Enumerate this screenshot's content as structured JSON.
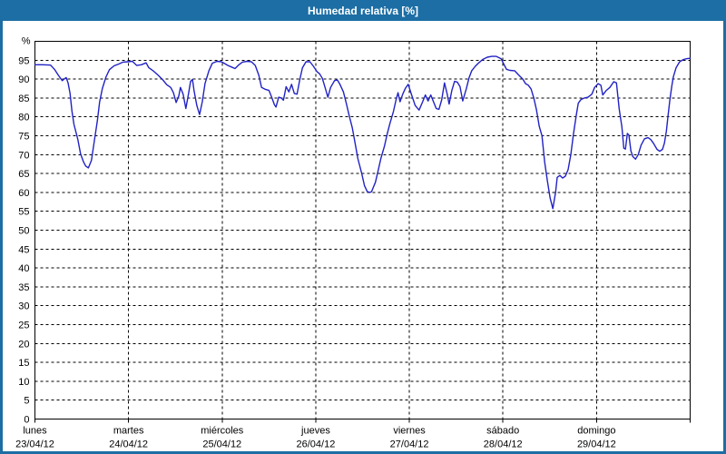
{
  "window": {
    "title": "Humedad relativa [%]"
  },
  "colors": {
    "titlebar": "#1c6ea4",
    "frame_border": "#1c6ea4",
    "line": "#2222c4",
    "grid": "#000000",
    "background": "#ffffff",
    "plot_background": "#ffffff",
    "title_text": "#ffffff",
    "axis_text": "#000000"
  },
  "chart_data": {
    "type": "line",
    "title": "Humedad relativa [%]",
    "ylabel": "%",
    "grid": "dashed",
    "legend_position": "none",
    "y_axis": {
      "min": 0,
      "max": 100,
      "tick_step": 5,
      "top_label": "%",
      "tick_labels": [
        "0",
        "5",
        "10",
        "15",
        "20",
        "25",
        "30",
        "35",
        "40",
        "45",
        "50",
        "55",
        "60",
        "65",
        "70",
        "75",
        "80",
        "85",
        "90",
        "95"
      ]
    },
    "x_axis": {
      "total_hours": 168,
      "days": [
        {
          "name": "lunes",
          "date": "23/04/12"
        },
        {
          "name": "martes",
          "date": "24/04/12"
        },
        {
          "name": "miércoles",
          "date": "25/04/12"
        },
        {
          "name": "jueves",
          "date": "26/04/12"
        },
        {
          "name": "viernes",
          "date": "27/04/12"
        },
        {
          "name": "sábado",
          "date": "28/04/12"
        },
        {
          "name": "domingo",
          "date": "29/04/12"
        }
      ]
    },
    "series": [
      {
        "name": "Humedad relativa",
        "unit": "%",
        "points": [
          [
            0,
            93.8
          ],
          [
            2,
            93.8
          ],
          [
            4,
            93.7
          ],
          [
            5,
            92.6
          ],
          [
            6,
            91.0
          ],
          [
            7,
            89.6
          ],
          [
            7.5,
            90.0
          ],
          [
            8,
            90.4
          ],
          [
            8.5,
            89.0
          ],
          [
            9,
            86.2
          ],
          [
            9.5,
            81.5
          ],
          [
            10,
            78.0
          ],
          [
            11,
            74.0
          ],
          [
            11.7,
            70.2
          ],
          [
            12.4,
            68.2
          ],
          [
            13,
            67.0
          ],
          [
            13.7,
            66.5
          ],
          [
            14.5,
            68.5
          ],
          [
            15.2,
            73.4
          ],
          [
            16,
            79.0
          ],
          [
            16.6,
            84.0
          ],
          [
            17.3,
            87.5
          ],
          [
            18.2,
            90.5
          ],
          [
            19.1,
            92.5
          ],
          [
            20.3,
            93.5
          ],
          [
            21.5,
            94.0
          ],
          [
            22.6,
            94.5
          ],
          [
            23.8,
            94.6
          ],
          [
            25,
            94.7
          ],
          [
            26.1,
            93.6
          ],
          [
            27.3,
            93.8
          ],
          [
            28.5,
            94.3
          ],
          [
            29.2,
            93.0
          ],
          [
            30.3,
            92.2
          ],
          [
            31.5,
            91.1
          ],
          [
            32.7,
            89.9
          ],
          [
            33.8,
            88.5
          ],
          [
            34.8,
            87.8
          ],
          [
            35.5,
            86.4
          ],
          [
            36.2,
            83.8
          ],
          [
            36.9,
            85.6
          ],
          [
            37.3,
            87.8
          ],
          [
            38,
            86.0
          ],
          [
            38.7,
            82.2
          ],
          [
            39.4,
            86.2
          ],
          [
            39.9,
            89.4
          ],
          [
            40.4,
            89.9
          ],
          [
            40.8,
            87.0
          ],
          [
            41.5,
            83.0
          ],
          [
            42.2,
            80.6
          ],
          [
            42.9,
            84.0
          ],
          [
            43.6,
            88.8
          ],
          [
            44.6,
            92.2
          ],
          [
            45.5,
            94.2
          ],
          [
            46.7,
            94.7
          ],
          [
            47.8,
            94.6
          ],
          [
            48.5,
            94.2
          ],
          [
            49.5,
            93.6
          ],
          [
            50.4,
            93.2
          ],
          [
            51.3,
            92.8
          ],
          [
            52.3,
            93.8
          ],
          [
            53.2,
            94.5
          ],
          [
            54.4,
            94.7
          ],
          [
            55.5,
            94.6
          ],
          [
            56.5,
            93.6
          ],
          [
            57.4,
            91.0
          ],
          [
            58.1,
            87.8
          ],
          [
            59,
            87.3
          ],
          [
            60,
            87.0
          ],
          [
            60.7,
            85.2
          ],
          [
            61.4,
            83.2
          ],
          [
            61.8,
            82.6
          ],
          [
            62.5,
            85.2
          ],
          [
            63.2,
            85.0
          ],
          [
            63.7,
            84.4
          ],
          [
            64.4,
            88.0
          ],
          [
            65.1,
            86.6
          ],
          [
            65.8,
            88.6
          ],
          [
            66.5,
            86.2
          ],
          [
            67.2,
            86.0
          ],
          [
            67.9,
            89.8
          ],
          [
            68.6,
            93.0
          ],
          [
            69.5,
            94.6
          ],
          [
            70.5,
            94.6
          ],
          [
            71.4,
            93.4
          ],
          [
            72.3,
            92.0
          ],
          [
            73,
            91.4
          ],
          [
            73.7,
            90.2
          ],
          [
            74.4,
            87.8
          ],
          [
            75.1,
            85.2
          ],
          [
            75.8,
            87.8
          ],
          [
            76.8,
            89.6
          ],
          [
            77.5,
            89.8
          ],
          [
            78.2,
            88.6
          ],
          [
            79.1,
            86.6
          ],
          [
            79.8,
            83.8
          ],
          [
            80.5,
            80.6
          ],
          [
            81.4,
            77.0
          ],
          [
            82.1,
            73.0
          ],
          [
            82.8,
            69.0
          ],
          [
            83.8,
            65.0
          ],
          [
            84.5,
            61.8
          ],
          [
            85.2,
            60.2
          ],
          [
            85.9,
            60.0
          ],
          [
            86.3,
            60.2
          ],
          [
            87.3,
            62.7
          ],
          [
            88,
            65.8
          ],
          [
            88.7,
            69.0
          ],
          [
            89.6,
            72.2
          ],
          [
            90.3,
            75.4
          ],
          [
            91,
            78.2
          ],
          [
            91.9,
            81.4
          ],
          [
            92.6,
            84.6
          ],
          [
            93.1,
            86.4
          ],
          [
            93.6,
            84.0
          ],
          [
            94.3,
            86.0
          ],
          [
            95,
            87.6
          ],
          [
            95.7,
            88.6
          ],
          [
            96.6,
            85.8
          ],
          [
            97.5,
            83.0
          ],
          [
            98.5,
            81.8
          ],
          [
            99.4,
            84.0
          ],
          [
            100.1,
            85.8
          ],
          [
            100.8,
            84.2
          ],
          [
            101.5,
            85.8
          ],
          [
            102.2,
            84.0
          ],
          [
            102.9,
            82.2
          ],
          [
            103.6,
            82.0
          ],
          [
            104.3,
            84.5
          ],
          [
            105,
            89.0
          ],
          [
            105.7,
            86.0
          ],
          [
            106.2,
            83.4
          ],
          [
            106.9,
            87.0
          ],
          [
            107.6,
            89.4
          ],
          [
            108.3,
            89.2
          ],
          [
            109,
            88.0
          ],
          [
            109.7,
            84.2
          ],
          [
            110.6,
            87.4
          ],
          [
            111.3,
            90.3
          ],
          [
            112,
            92.2
          ],
          [
            112.9,
            93.4
          ],
          [
            113.9,
            94.4
          ],
          [
            114.8,
            95.2
          ],
          [
            116,
            95.8
          ],
          [
            117.1,
            96.0
          ],
          [
            118.3,
            96.0
          ],
          [
            119.5,
            95.4
          ],
          [
            120.2,
            94.0
          ],
          [
            120.9,
            92.6
          ],
          [
            121.8,
            92.3
          ],
          [
            123,
            92.2
          ],
          [
            124.1,
            91.0
          ],
          [
            125.1,
            90.0
          ],
          [
            125.8,
            88.8
          ],
          [
            126.5,
            88.4
          ],
          [
            127.2,
            87.4
          ],
          [
            127.9,
            85.0
          ],
          [
            128.6,
            81.8
          ],
          [
            129.3,
            77.5
          ],
          [
            130,
            75.0
          ],
          [
            130.7,
            68.0
          ],
          [
            131.4,
            63.0
          ],
          [
            132.1,
            58.5
          ],
          [
            132.8,
            55.7
          ],
          [
            133.5,
            60.0
          ],
          [
            133.9,
            64.0
          ],
          [
            134.6,
            64.5
          ],
          [
            135.3,
            63.8
          ],
          [
            136,
            64.3
          ],
          [
            136.7,
            66.0
          ],
          [
            137.4,
            70.0
          ],
          [
            138.1,
            75.6
          ],
          [
            138.8,
            80.4
          ],
          [
            139.3,
            83.6
          ],
          [
            140,
            84.6
          ],
          [
            140.9,
            85.0
          ],
          [
            141.8,
            85.2
          ],
          [
            142.8,
            86.0
          ],
          [
            143.5,
            87.8
          ],
          [
            144.4,
            88.8
          ],
          [
            145.1,
            88.4
          ],
          [
            145.6,
            85.8
          ],
          [
            146.5,
            87.0
          ],
          [
            147.4,
            87.8
          ],
          [
            148.4,
            89.3
          ],
          [
            149.1,
            89.0
          ],
          [
            149.8,
            82.1
          ],
          [
            150.5,
            77.3
          ],
          [
            151,
            71.7
          ],
          [
            151.4,
            71.5
          ],
          [
            151.9,
            75.6
          ],
          [
            152.3,
            75.2
          ],
          [
            152.8,
            71.0
          ],
          [
            153.3,
            69.5
          ],
          [
            154,
            68.8
          ],
          [
            154.7,
            70.0
          ],
          [
            155.4,
            72.5
          ],
          [
            156.3,
            74.2
          ],
          [
            157.2,
            74.5
          ],
          [
            157.9,
            74.0
          ],
          [
            158.6,
            73.0
          ],
          [
            159.5,
            71.4
          ],
          [
            160.2,
            70.9
          ],
          [
            160.9,
            71.4
          ],
          [
            161.4,
            73.0
          ],
          [
            161.9,
            76.2
          ],
          [
            162.3,
            80.0
          ],
          [
            162.8,
            84.6
          ],
          [
            163.3,
            88.2
          ],
          [
            163.7,
            90.6
          ],
          [
            164.4,
            93.0
          ],
          [
            165.3,
            94.6
          ],
          [
            166.3,
            95.2
          ],
          [
            167.2,
            95.4
          ],
          [
            168,
            95.5
          ]
        ]
      }
    ]
  }
}
